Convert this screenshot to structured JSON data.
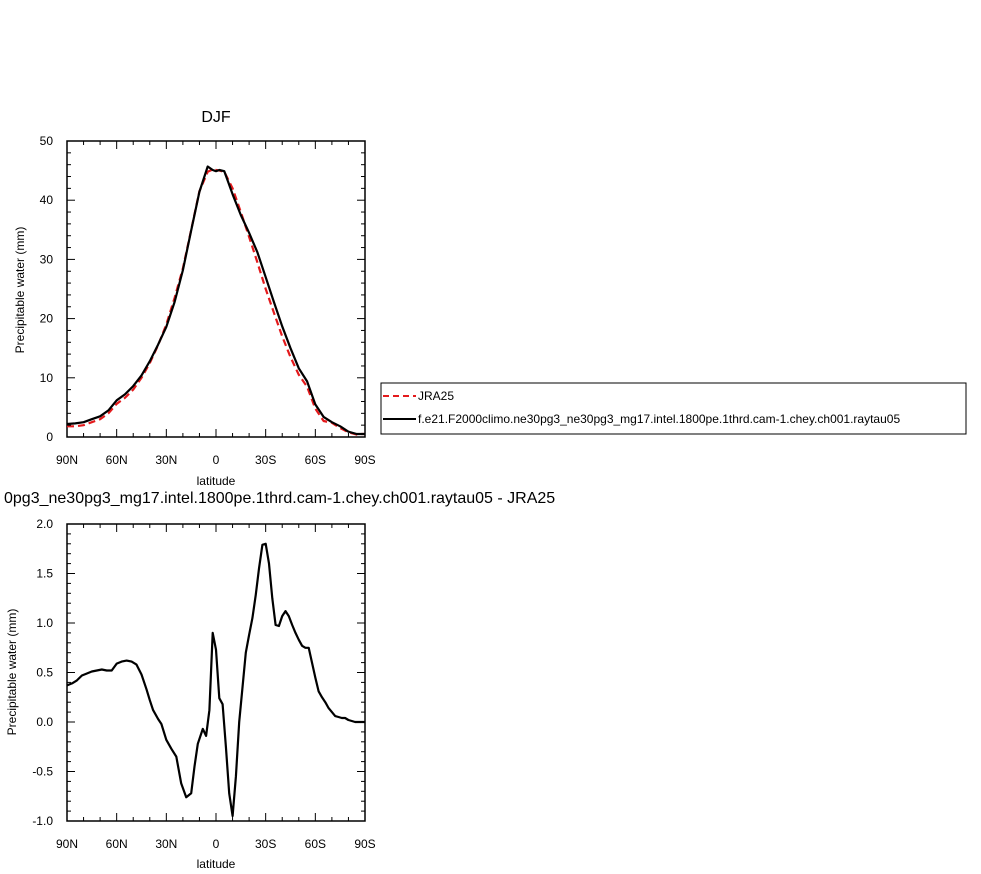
{
  "chart_data": [
    {
      "type": "line",
      "title": "DJF",
      "xlabel": "latitude",
      "ylabel": "Precipitable water (mm)",
      "xlim": [
        90,
        -90
      ],
      "ylim": [
        0,
        50
      ],
      "xticks": [
        90,
        60,
        30,
        0,
        -30,
        -60,
        -90
      ],
      "xtick_labels": [
        "90N",
        "60N",
        "30N",
        "0",
        "30S",
        "60S",
        "90S"
      ],
      "yticks": [
        0,
        10,
        20,
        30,
        40,
        50
      ],
      "ytick_labels": [
        "0",
        "10",
        "20",
        "30",
        "40",
        "50"
      ],
      "legend_position": "right",
      "x": [
        90,
        85,
        80,
        75,
        70,
        65,
        60,
        55,
        50,
        45,
        40,
        35,
        30,
        25,
        20,
        15,
        10,
        5,
        2,
        0,
        -2,
        -5,
        -10,
        -15,
        -20,
        -25,
        -30,
        -35,
        -40,
        -45,
        -50,
        -55,
        -60,
        -65,
        -70,
        -75,
        -80,
        -85,
        -88,
        -90
      ],
      "series": [
        {
          "name": "JRA25",
          "color": "#e41a1c",
          "dash": "dashed",
          "values": [
            1.8,
            1.8,
            2.0,
            2.5,
            3.0,
            4.0,
            5.6,
            6.6,
            8.0,
            10.0,
            12.5,
            15.5,
            19.0,
            23.5,
            28.5,
            35.0,
            41.5,
            44.8,
            45.2,
            45.1,
            45.0,
            44.8,
            42.0,
            38.0,
            33.8,
            29.5,
            25.0,
            21.0,
            17.0,
            13.5,
            10.5,
            8.5,
            4.8,
            2.7,
            2.4,
            1.5,
            0.8,
            0.4,
            0.5,
            0.5
          ]
        },
        {
          "name": "f.e21.F2000climo.ne30pg3_ne30pg3_mg17.intel.1800pe.1thrd.cam-1.chey.ch001.raytau05",
          "color": "#000000",
          "dash": "solid",
          "values": [
            2.2,
            2.3,
            2.5,
            3.0,
            3.5,
            4.5,
            6.2,
            7.2,
            8.6,
            10.4,
            12.8,
            15.6,
            18.6,
            22.8,
            28.2,
            34.9,
            41.4,
            45.7,
            45.1,
            44.9,
            45.1,
            44.9,
            41.0,
            37.5,
            34.5,
            31.2,
            27.0,
            22.8,
            18.7,
            15.0,
            11.6,
            9.4,
            5.5,
            3.4,
            2.5,
            1.8,
            0.9,
            0.5,
            0.5,
            0.5
          ]
        }
      ]
    },
    {
      "type": "line",
      "title": "0pg3_ne30pg3_mg17.intel.1800pe.1thrd.cam-1.chey.ch001.raytau05 - JRA25",
      "xlabel": "latitude",
      "ylabel": "Precipitable water (mm)",
      "xlim": [
        90,
        -90
      ],
      "ylim": [
        -1.0,
        2.0
      ],
      "xticks": [
        90,
        60,
        30,
        0,
        -30,
        -60,
        -90
      ],
      "xtick_labels": [
        "90N",
        "60N",
        "30N",
        "0",
        "30S",
        "60S",
        "90S"
      ],
      "yticks": [
        -1.0,
        -0.5,
        0.0,
        0.5,
        1.0,
        1.5,
        2.0
      ],
      "ytick_labels": [
        "-1.0",
        "-0.5",
        "0.0",
        "0.5",
        "1.0",
        "1.5",
        "2.0"
      ],
      "x": [
        90,
        87,
        84,
        81,
        78,
        75,
        72,
        69,
        66,
        63,
        60,
        57,
        54,
        51,
        48,
        45,
        42,
        40,
        38,
        35,
        33,
        30,
        27,
        24,
        21,
        18,
        15,
        13,
        11,
        8,
        6,
        4,
        2,
        0,
        -2,
        -4,
        -6,
        -8,
        -10,
        -12,
        -14,
        -16,
        -18,
        -20,
        -22,
        -24,
        -26,
        -28,
        -30,
        -32,
        -34,
        -36,
        -38,
        -40,
        -42,
        -44,
        -46,
        -48,
        -50,
        -52,
        -54,
        -56,
        -58,
        -60,
        -62,
        -64,
        -66,
        -68,
        -70,
        -72,
        -74,
        -76,
        -78,
        -80,
        -82,
        -84,
        -86,
        -88,
        -90
      ],
      "series": [
        {
          "name": "",
          "color": "#000000",
          "dash": "solid",
          "values": [
            0.37,
            0.39,
            0.42,
            0.47,
            0.49,
            0.51,
            0.52,
            0.53,
            0.52,
            0.52,
            0.59,
            0.61,
            0.62,
            0.61,
            0.58,
            0.48,
            0.33,
            0.22,
            0.12,
            0.03,
            -0.02,
            -0.18,
            -0.27,
            -0.35,
            -0.62,
            -0.76,
            -0.72,
            -0.45,
            -0.22,
            -0.07,
            -0.14,
            0.12,
            0.9,
            0.73,
            0.24,
            0.18,
            -0.25,
            -0.72,
            -0.95,
            -0.55,
            0.0,
            0.35,
            0.7,
            0.88,
            1.05,
            1.28,
            1.55,
            1.79,
            1.8,
            1.6,
            1.25,
            0.98,
            0.97,
            1.07,
            1.12,
            1.07,
            0.98,
            0.9,
            0.83,
            0.77,
            0.75,
            0.75,
            0.6,
            0.45,
            0.31,
            0.25,
            0.2,
            0.14,
            0.1,
            0.06,
            0.05,
            0.04,
            0.04,
            0.02,
            0.01,
            0.0,
            0.0,
            0.0,
            0.0
          ]
        }
      ]
    }
  ]
}
